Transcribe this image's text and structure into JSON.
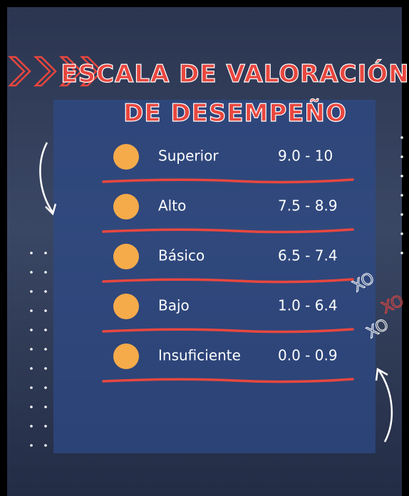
{
  "header": {
    "title": [
      "ESCALA DE VALORACIÓN",
      "DE DESEMPEÑO"
    ]
  },
  "table": {
    "rows": [
      {
        "label": "Superior",
        "range": "9.0 - 10"
      },
      {
        "label": "Alto",
        "range": "7.5 - 8.9"
      },
      {
        "label": "Básico",
        "range": "6.5 - 7.4"
      },
      {
        "label": "Bajo",
        "range": "1.0 - 6.4"
      },
      {
        "label": "Insuficiente",
        "range": "0.0 - 0.9"
      }
    ]
  },
  "annotations": [
    "XO",
    "XO",
    "XO"
  ]
}
